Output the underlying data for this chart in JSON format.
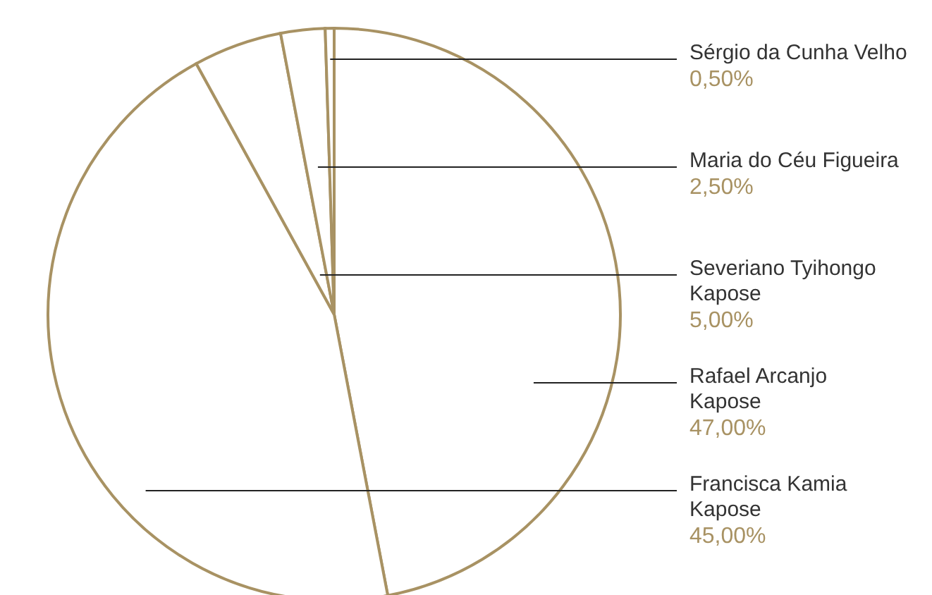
{
  "chart_data": {
    "type": "pie",
    "categories": [
      "Rafael Arcanjo Kapose",
      "Francisca Kamia Kapose",
      "Severiano Tyihongo Kapose",
      "Maria do Céu Figueira",
      "Sérgio da Cunha Velho"
    ],
    "values": [
      47,
      45,
      5,
      2.5,
      0.5
    ],
    "colors": [
      "#ffffff",
      "#ffffff",
      "#ffffff",
      "#ffffff",
      "#ffffff"
    ],
    "value_labels": [
      "47,00%",
      "45,00%",
      "5,00%",
      "2,50%",
      "0,50%"
    ],
    "legend": false
  }
}
